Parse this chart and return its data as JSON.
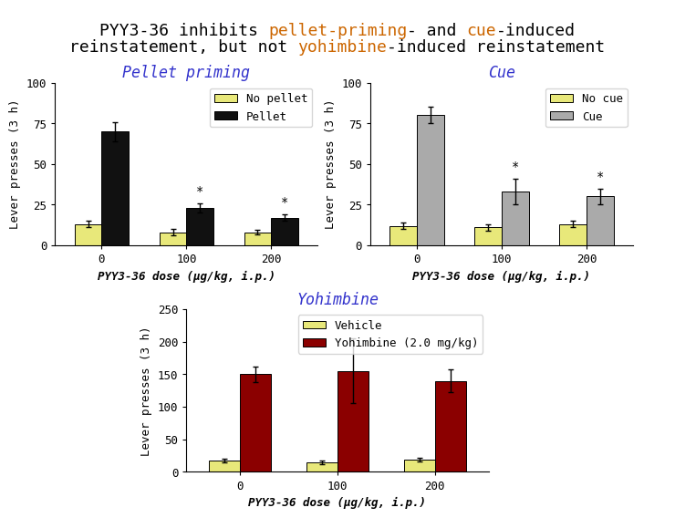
{
  "line1": [
    {
      "text": "PYY3-36 inhibits ",
      "color": "#000000"
    },
    {
      "text": "pellet-priming",
      "color": "#cc6600"
    },
    {
      "text": "- and ",
      "color": "#000000"
    },
    {
      "text": "cue",
      "color": "#cc6600"
    },
    {
      "text": "-induced",
      "color": "#000000"
    }
  ],
  "line2": [
    {
      "text": "reinstatement, but not ",
      "color": "#000000"
    },
    {
      "text": "yohimbine",
      "color": "#cc6600"
    },
    {
      "text": "-induced reinstatement",
      "color": "#000000"
    }
  ],
  "pellet": {
    "title": "Pellet priming",
    "title_color": "#3333cc",
    "doses": [
      0,
      100,
      200
    ],
    "means1": [
      13,
      8,
      8
    ],
    "errors1": [
      2,
      2,
      1.5
    ],
    "means2": [
      70,
      23,
      17
    ],
    "errors2": [
      6,
      3,
      2
    ],
    "color1": "#e8e87a",
    "color2": "#111111",
    "legend_labels": [
      "No pellet",
      "Pellet"
    ],
    "ylabel": "Lever presses (3 h)",
    "xlabel": "PYY3-36 dose (μg/kg, i.p.)",
    "ylim": [
      0,
      100
    ],
    "yticks": [
      0,
      25,
      50,
      75,
      100
    ],
    "sig_bar_idx": [
      1,
      2
    ]
  },
  "cue": {
    "title": "Cue",
    "title_color": "#3333cc",
    "doses": [
      0,
      100,
      200
    ],
    "means1": [
      12,
      11,
      13
    ],
    "errors1": [
      2,
      2,
      2
    ],
    "means2": [
      80,
      33,
      30
    ],
    "errors2": [
      5,
      8,
      5
    ],
    "color1": "#e8e87a",
    "color2": "#aaaaaa",
    "legend_labels": [
      "No cue",
      "Cue"
    ],
    "ylabel": "Lever presses (3 h)",
    "xlabel": "PYY3-36 dose (μg/kg, i.p.)",
    "ylim": [
      0,
      100
    ],
    "yticks": [
      0,
      25,
      50,
      75,
      100
    ],
    "sig_bar_idx": [
      1,
      2
    ]
  },
  "yohimbine": {
    "title": "Yohimbine",
    "title_color": "#3333cc",
    "doses": [
      0,
      100,
      200
    ],
    "means1": [
      17,
      15,
      19
    ],
    "errors1": [
      3,
      3,
      3
    ],
    "means2": [
      150,
      155,
      140
    ],
    "errors2": [
      12,
      50,
      18
    ],
    "color1": "#e8e87a",
    "color2": "#8b0000",
    "legend_labels": [
      "Vehicle",
      "Yohimbine (2.0 mg/kg)"
    ],
    "ylabel": "Lever presses (3 h)",
    "xlabel": "PYY3-36 dose (μg/kg, i.p.)",
    "ylim": [
      0,
      250
    ],
    "yticks": [
      0,
      50,
      100,
      150,
      200,
      250
    ],
    "sig_bar_idx": []
  },
  "title_fontsize": 13,
  "subplot_title_fontsize": 12,
  "axis_label_fontsize": 9,
  "tick_fontsize": 9,
  "legend_fontsize": 9,
  "bar_width": 0.32,
  "background_color": "#ffffff"
}
